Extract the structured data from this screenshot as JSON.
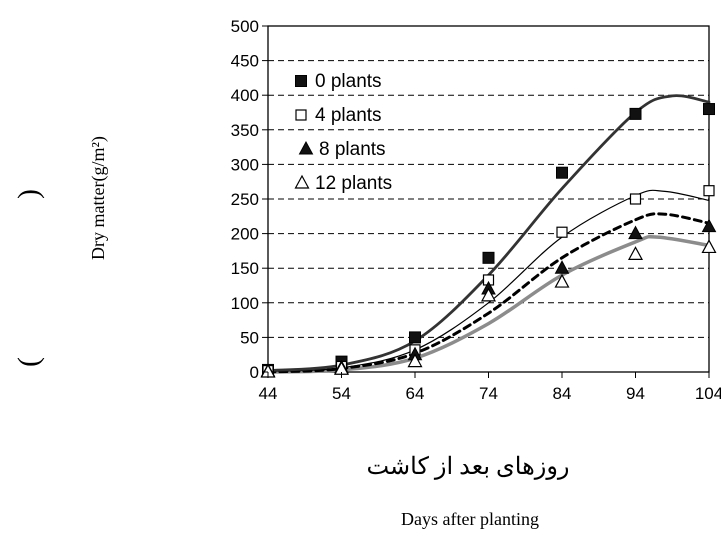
{
  "chart_data": {
    "type": "line",
    "title": "",
    "ylabel": "Dry matter(g/m²)",
    "ylabel_parens": [
      "(",
      ")"
    ],
    "xlabel_fa": "روزهای بعد از کاشت",
    "xlabel": "Days after planting",
    "x_ticks": [
      "44",
      "54",
      "64",
      "74",
      "84",
      "94",
      "104"
    ],
    "y_ticks": [
      "0",
      "50",
      "100",
      "150",
      "200",
      "250",
      "300",
      "350",
      "400",
      "450",
      "500"
    ],
    "xlim": [
      44,
      104
    ],
    "ylim": [
      0,
      500
    ],
    "grid": "horizontal dashed",
    "legend_position": "top-left",
    "series": [
      {
        "name": "0 plants",
        "marker": "filled-square",
        "line_style": "thick solid dark",
        "color": "#333333",
        "points": [
          [
            44,
            3
          ],
          [
            54,
            15
          ],
          [
            64,
            50
          ],
          [
            74,
            165
          ],
          [
            84,
            288
          ],
          [
            94,
            373
          ],
          [
            104,
            380
          ]
        ],
        "fitted": [
          [
            44,
            2
          ],
          [
            54,
            10
          ],
          [
            64,
            45
          ],
          [
            74,
            140
          ],
          [
            84,
            265
          ],
          [
            94,
            375
          ],
          [
            99,
            399
          ],
          [
            104,
            390
          ]
        ]
      },
      {
        "name": "4 plants",
        "marker": "open-square",
        "line_style": "thin solid",
        "color": "#000000",
        "points": [
          [
            44,
            2
          ],
          [
            54,
            8
          ],
          [
            64,
            32
          ],
          [
            74,
            133
          ],
          [
            84,
            202
          ],
          [
            94,
            250
          ],
          [
            104,
            262
          ]
        ],
        "fitted": [
          [
            44,
            1
          ],
          [
            54,
            6
          ],
          [
            64,
            32
          ],
          [
            74,
            100
          ],
          [
            84,
            195
          ],
          [
            94,
            255
          ],
          [
            98,
            261
          ],
          [
            104,
            248
          ]
        ]
      },
      {
        "name": "8 plants",
        "marker": "filled-triangle",
        "line_style": "thick dashed",
        "color": "#000000",
        "points": [
          [
            44,
            1
          ],
          [
            54,
            6
          ],
          [
            64,
            25
          ],
          [
            74,
            120
          ],
          [
            84,
            150
          ],
          [
            94,
            200
          ],
          [
            104,
            210
          ]
        ],
        "fitted": [
          [
            44,
            0
          ],
          [
            54,
            5
          ],
          [
            64,
            27
          ],
          [
            74,
            85
          ],
          [
            84,
            165
          ],
          [
            94,
            220
          ],
          [
            98,
            228
          ],
          [
            104,
            215
          ]
        ]
      },
      {
        "name": "12 plants",
        "marker": "open-triangle",
        "line_style": "thick solid gray",
        "color": "#8c8c8c",
        "points": [
          [
            44,
            0
          ],
          [
            54,
            4
          ],
          [
            64,
            15
          ],
          [
            74,
            110
          ],
          [
            84,
            130
          ],
          [
            94,
            170
          ],
          [
            104,
            180
          ]
        ],
        "fitted": [
          [
            44,
            0
          ],
          [
            54,
            3
          ],
          [
            64,
            20
          ],
          [
            74,
            70
          ],
          [
            84,
            140
          ],
          [
            94,
            188
          ],
          [
            97,
            195
          ],
          [
            104,
            183
          ]
        ]
      }
    ]
  }
}
